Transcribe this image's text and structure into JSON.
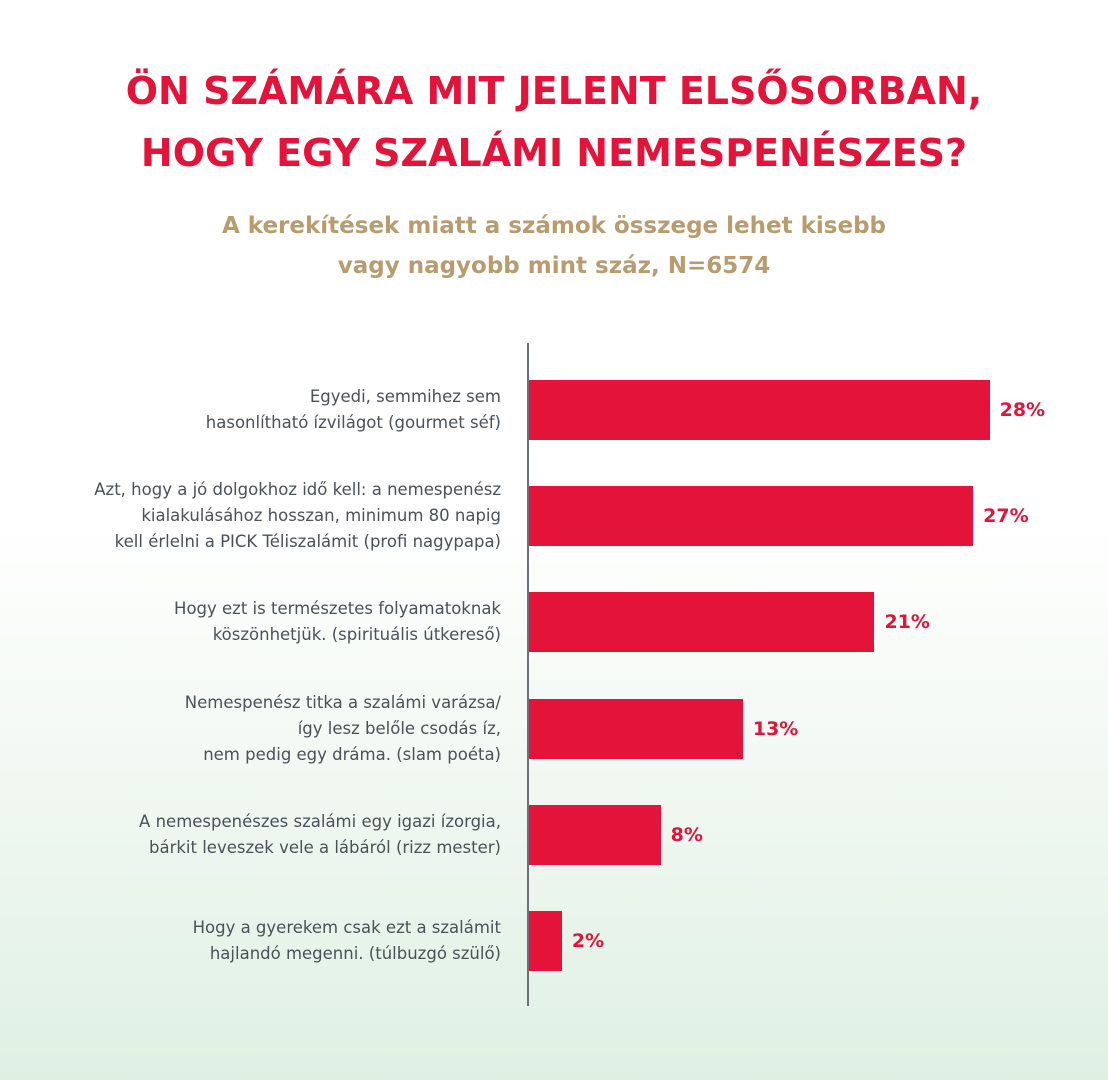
{
  "title_lines": [
    "ÖN SZÁMÁRA MIT JELENT ELSŐSORBAN,",
    "HOGY EGY SZALÁMI NEMESPENÉSZES?"
  ],
  "subtitle_lines": [
    "A kerekítések miatt a számok összege lehet kisebb",
    "vagy nagyobb mint száz, N=6574"
  ],
  "colors": {
    "bar": "#e4133a",
    "title": "#e4133a",
    "subtitle": "#b89c6e",
    "label_text": "#4a5159"
  },
  "chart_data": {
    "type": "bar",
    "orientation": "horizontal",
    "categories": [
      [
        "Egyedi, semmihez sem",
        "hasonlítható ízvilágot (gourmet séf)"
      ],
      [
        "Azt, hogy a jó dolgokhoz idő kell:  a nemespenész",
        "kialakulásához hosszan, minimum 80 napig",
        "kell érlelni a PICK Téliszalámit (profi nagypapa)"
      ],
      [
        "Hogy ezt is természetes folyamatoknak",
        "köszönhetjük. (spirituális útkereső)"
      ],
      [
        "Nemespenész titka a szalámi varázsa/",
        "így lesz belőle csodás íz,",
        "nem pedig egy dráma. (slam poéta)"
      ],
      [
        "A nemespenészes szalámi egy igazi ízorgia,",
        "bárkit leveszek vele a lábáról (rizz mester)"
      ],
      [
        "Hogy a gyerekem csak ezt a szalámit",
        "hajlandó megenni. (túlbuzgó szülő)"
      ]
    ],
    "values": [
      28,
      27,
      21,
      13,
      8,
      2
    ],
    "value_labels": [
      "28%",
      "27%",
      "21%",
      "13%",
      "8%",
      "2%"
    ],
    "unit": "%",
    "xlim": [
      0,
      30
    ],
    "grid": false,
    "legend": "none"
  }
}
